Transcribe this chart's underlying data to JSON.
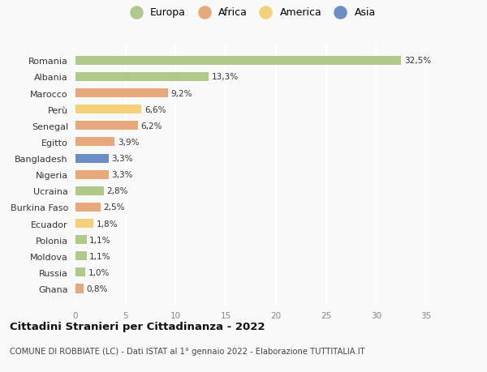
{
  "countries": [
    "Romania",
    "Albania",
    "Marocco",
    "Perù",
    "Senegal",
    "Egitto",
    "Bangladesh",
    "Nigeria",
    "Ucraina",
    "Burkina Faso",
    "Ecuador",
    "Polonia",
    "Moldova",
    "Russia",
    "Ghana"
  ],
  "values": [
    32.5,
    13.3,
    9.2,
    6.6,
    6.2,
    3.9,
    3.3,
    3.3,
    2.8,
    2.5,
    1.8,
    1.1,
    1.1,
    1.0,
    0.8
  ],
  "labels": [
    "32,5%",
    "13,3%",
    "9,2%",
    "6,6%",
    "6,2%",
    "3,9%",
    "3,3%",
    "3,3%",
    "2,8%",
    "2,5%",
    "1,8%",
    "1,1%",
    "1,1%",
    "1,0%",
    "0,8%"
  ],
  "colors": [
    "#aec98a",
    "#aec98a",
    "#e8a87c",
    "#f5d07a",
    "#e8a87c",
    "#e8a87c",
    "#6b8ec4",
    "#e8a87c",
    "#aec98a",
    "#e8a87c",
    "#f5d07a",
    "#aec98a",
    "#aec98a",
    "#aec98a",
    "#e8a87c"
  ],
  "legend": [
    {
      "label": "Europa",
      "color": "#aec98a"
    },
    {
      "label": "Africa",
      "color": "#e8a87c"
    },
    {
      "label": "America",
      "color": "#f5d07a"
    },
    {
      "label": "Asia",
      "color": "#6b8ec4"
    }
  ],
  "xlim": [
    0,
    35
  ],
  "xticks": [
    0,
    5,
    10,
    15,
    20,
    25,
    30,
    35
  ],
  "title": "Cittadini Stranieri per Cittadinanza - 2022",
  "subtitle": "COMUNE DI ROBBIATE (LC) - Dati ISTAT al 1° gennaio 2022 - Elaborazione TUTTITALIA.IT",
  "background_color": "#f9f9f9",
  "grid_color": "#e8e8e8",
  "bar_height": 0.55
}
